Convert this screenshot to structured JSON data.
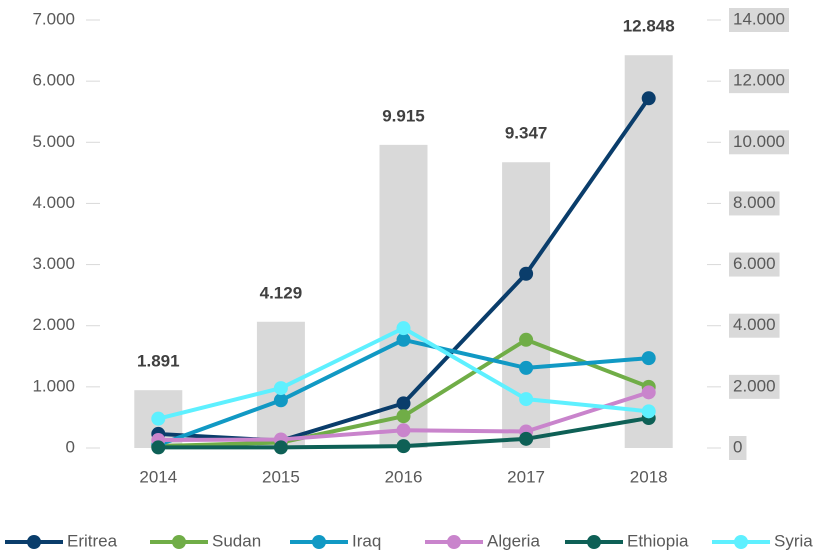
{
  "chart_data": {
    "type": "bar_line",
    "categories": [
      "2014",
      "2015",
      "2016",
      "2017",
      "2018"
    ],
    "bars": {
      "color": "#d9d9d9",
      "axis": "y2",
      "values": [
        1891,
        4129,
        9915,
        9347,
        12848
      ],
      "value_labels": [
        "1.891",
        "4.129",
        "9.915",
        "9.347",
        "12.848"
      ]
    },
    "series": [
      {
        "name": "Eritrea",
        "color": "#0a3d6b",
        "values": [
          230,
          120,
          730,
          2850,
          5720
        ]
      },
      {
        "name": "Sudan",
        "color": "#70ad47",
        "values": [
          30,
          90,
          520,
          1770,
          1000
        ]
      },
      {
        "name": "Iraq",
        "color": "#1199c4",
        "values": [
          50,
          780,
          1770,
          1310,
          1470
        ]
      },
      {
        "name": "Algeria",
        "color": "#c984cc",
        "values": [
          130,
          140,
          290,
          270,
          910
        ]
      },
      {
        "name": "Ethiopia",
        "color": "#0e6056",
        "values": [
          10,
          10,
          30,
          150,
          490
        ]
      },
      {
        "name": "Syria",
        "color": "#5ef0ff",
        "values": [
          480,
          980,
          1960,
          800,
          600
        ]
      }
    ],
    "ylim": [
      0,
      7000
    ],
    "yticks": [
      {
        "value": 0,
        "label": "0"
      },
      {
        "value": 1000,
        "label": "1.000"
      },
      {
        "value": 2000,
        "label": "2.000"
      },
      {
        "value": 3000,
        "label": "3.000"
      },
      {
        "value": 4000,
        "label": "4.000"
      },
      {
        "value": 5000,
        "label": "5.000"
      },
      {
        "value": 6000,
        "label": "6.000"
      },
      {
        "value": 7000,
        "label": "7.000"
      }
    ],
    "y2lim": [
      0,
      14000
    ],
    "y2ticks": [
      {
        "value": 0,
        "label": "0"
      },
      {
        "value": 2000,
        "label": "2.000"
      },
      {
        "value": 4000,
        "label": "4.000"
      },
      {
        "value": 6000,
        "label": "6.000"
      },
      {
        "value": 8000,
        "label": "8.000"
      },
      {
        "value": 10000,
        "label": "10.000"
      },
      {
        "value": 12000,
        "label": "12.000"
      },
      {
        "value": 14000,
        "label": "14.000"
      }
    ],
    "legend": "bottom"
  }
}
